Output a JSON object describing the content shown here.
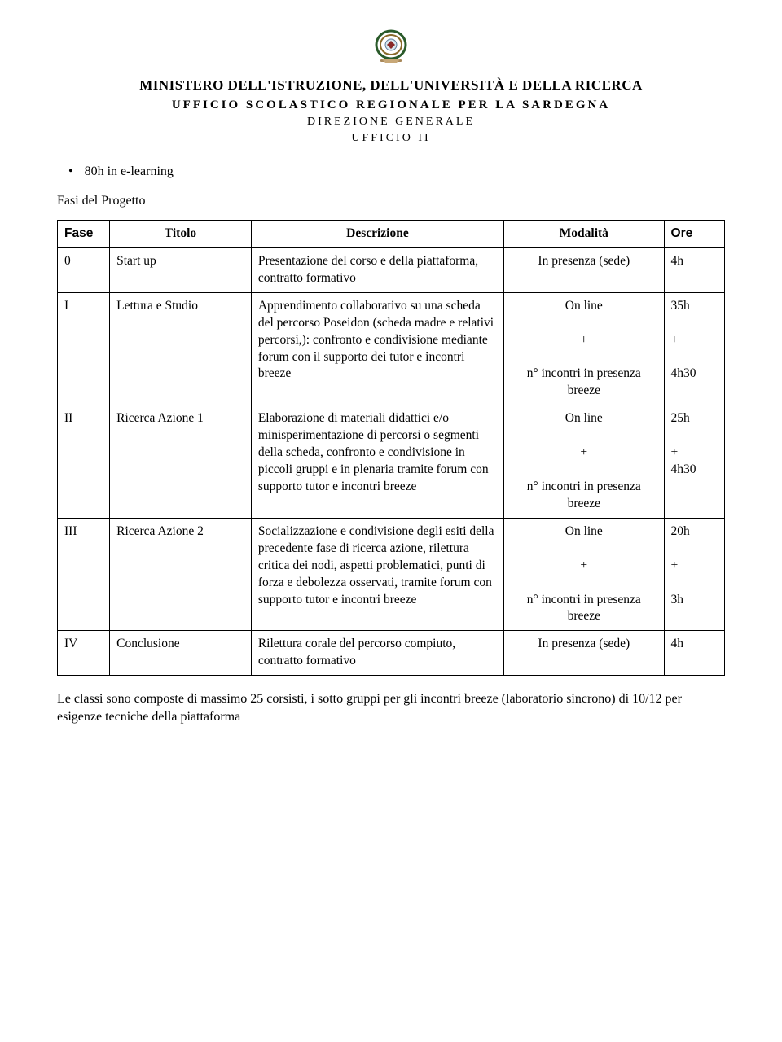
{
  "header": {
    "line1": "MINISTERO DELL'ISTRUZIONE, DELL'UNIVERSITÀ E DELLA RICERCA",
    "line2": "UFFICIO SCOLASTICO REGIONALE PER LA SARDEGNA",
    "line3": "DIREZIONE GENERALE",
    "line4": "UFFICIO II"
  },
  "bullet": "80h in e-learning",
  "section_title": "Fasi del Progetto",
  "table": {
    "headers": {
      "fase": "Fase",
      "titolo": "Titolo",
      "descrizione": "Descrizione",
      "modalita": "Modalità",
      "ore": "Ore"
    },
    "rows": [
      {
        "fase": "0",
        "titolo": "Start up",
        "descrizione": "Presentazione del corso e della piattaforma, contratto formativo",
        "modalita": "In presenza (sede)",
        "ore": "4h"
      },
      {
        "fase": "I",
        "titolo": "Lettura e Studio",
        "descrizione": "Apprendimento collaborativo su una scheda del percorso Poseidon (scheda madre e relativi percorsi,): confronto e condivisione mediante forum con il supporto dei tutor e incontri breeze",
        "modalita": "On line\n\n+\n\nn° incontri in presenza breeze",
        "ore": "35h\n\n+\n\n4h30"
      },
      {
        "fase": "II",
        "titolo": "Ricerca Azione 1",
        "descrizione": "Elaborazione di materiali didattici e/o minisperimentazione di percorsi o segmenti della scheda, confronto e condivisione in piccoli gruppi e in plenaria tramite forum con supporto tutor e incontri breeze",
        "modalita": "On line\n\n+\n\nn° incontri in presenza breeze",
        "ore": "25h\n\n+\n4h30"
      },
      {
        "fase": "III",
        "titolo": "Ricerca Azione 2",
        "descrizione": "Socializzazione e condivisione degli esiti della precedente fase di ricerca azione, rilettura critica dei nodi, aspetti problematici, punti di forza e debolezza osservati, tramite forum con supporto tutor e incontri breeze",
        "modalita": "On line\n\n+\n\nn° incontri in presenza breeze",
        "ore": "20h\n\n+\n\n3h"
      },
      {
        "fase": "IV",
        "titolo": "Conclusione",
        "descrizione": "Rilettura corale del percorso compiuto, contratto formativo",
        "modalita": "In presenza (sede)",
        "ore": "4h"
      }
    ]
  },
  "notes": "Le classi sono composte di massimo 25 corsisti, i sotto gruppi per gli incontri breeze (laboratorio sincrono) di 10/12 per esigenze tecniche della piattaforma"
}
